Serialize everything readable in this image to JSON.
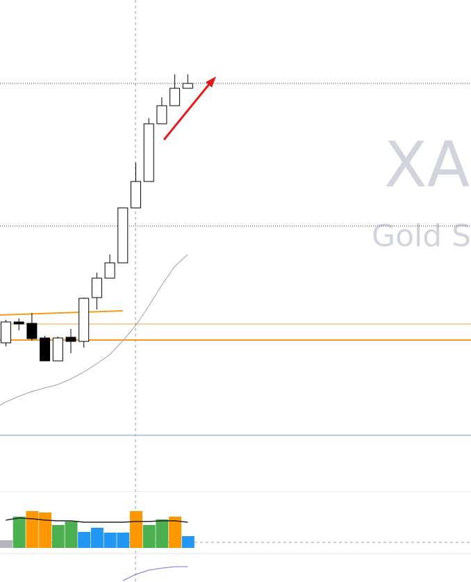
{
  "chart_data": {
    "type": "candlestick",
    "watermark": "XAU",
    "watermark_subtitle": "Gold Sp",
    "ylim": [
      0,
      625
    ],
    "candles": {
      "open": [
        132,
        162,
        160,
        139,
        106,
        140,
        134,
        197,
        225,
        247,
        326,
        364,
        447,
        473,
        498
      ],
      "high": [
        165,
        167,
        175,
        142,
        141,
        152,
        197,
        233,
        259,
        326,
        391,
        455,
        485,
        518,
        518
      ],
      "low": [
        127,
        150,
        135,
        106,
        106,
        117,
        125,
        180,
        225,
        247,
        326,
        364,
        447,
        473,
        498
      ],
      "close": [
        162,
        159,
        138,
        106,
        139,
        134,
        196,
        225,
        247,
        326,
        364,
        447,
        473,
        498,
        505
      ]
    },
    "moving_average": {
      "color": "#a0a0a0",
      "values": [
        47,
        55,
        62,
        67,
        72,
        80,
        90,
        102,
        115,
        135,
        157,
        185,
        215,
        242,
        259
      ]
    },
    "levels": [
      {
        "value": 505,
        "color": "#333333",
        "style": "dotted"
      },
      {
        "value": 300,
        "color": "#333333",
        "style": "dotted"
      },
      {
        "value": 159,
        "color": "#f2a43a",
        "style": "thin"
      },
      {
        "value": 136,
        "color": "#f29b1d",
        "style": "thick"
      }
    ],
    "trendline": {
      "color": "#f29b1d",
      "values": [
        172,
        178
      ]
    },
    "volume": {
      "ylim": [
        0,
        80
      ],
      "values": [
        11,
        45,
        53,
        51,
        33,
        38,
        23,
        29,
        22,
        22,
        53,
        33,
        41,
        45,
        17
      ],
      "colors": [
        "#b2b5be",
        "#4caf50",
        "#ff9800",
        "#ff9800",
        "#4caf50",
        "#4caf50",
        "#2196f3",
        "#2196f3",
        "#2196f3",
        "#2196f3",
        "#ff9800",
        "#4caf50",
        "#4caf50",
        "#ff9800",
        "#2196f3"
      ],
      "average": {
        "color": "#222222",
        "values": [
          40,
          43,
          42,
          40,
          39,
          39,
          37,
          37,
          37,
          37,
          38,
          38,
          39,
          39,
          37
        ]
      },
      "threshold": 8
    },
    "indicator": {
      "color": "#7e6fd0",
      "ylim": [
        0,
        40
      ],
      "values": [
        null,
        null,
        null,
        null,
        null,
        null,
        null,
        null,
        null,
        2,
        11,
        17,
        20,
        22,
        22
      ]
    }
  }
}
